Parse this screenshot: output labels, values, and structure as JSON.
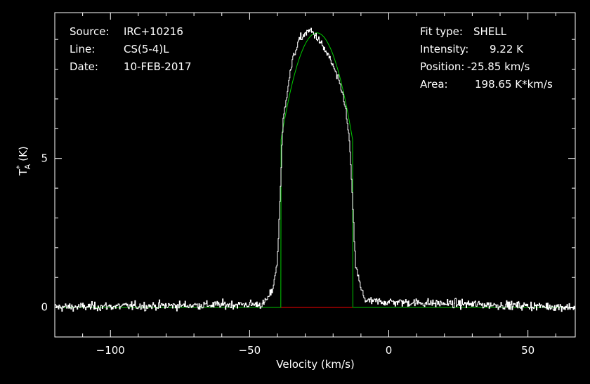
{
  "info": {
    "source_label": "Source:",
    "source_value": "IRC+10216",
    "line_label": "Line:",
    "line_value": "CS(5-4)L",
    "date_label": "Date:",
    "date_value": "10-FEB-2017",
    "fit_type_label": "Fit type:",
    "fit_type_value": "SHELL",
    "intensity_label": "Intensity:",
    "intensity_value": "9.22 K",
    "position_label": "Position:",
    "position_value": "-25.85 km/s",
    "area_label": "Area:",
    "area_value": "198.65 K*km/s"
  },
  "chart_data": {
    "type": "line",
    "xlabel": "Velocity (km/s)",
    "ylabel": "T",
    "ylabel_sup": "*",
    "ylabel_sub": "A",
    "ylabel_unit": "(K)",
    "xlim": [
      -120,
      67
    ],
    "ylim": [
      -1.0,
      9.9
    ],
    "xticks_major": [
      -100,
      -50,
      0,
      50
    ],
    "xtick_labels": [
      "−100",
      "−50",
      "0",
      "50"
    ],
    "yticks_major": [
      0,
      5
    ],
    "ytick_labels": [
      "0",
      "5"
    ],
    "grid": false,
    "colors": {
      "data": "#ffffff",
      "fit": "#00cc00",
      "window": "#cc0000",
      "frame": "#ffffff"
    },
    "fit": {
      "model": "SHELL",
      "center": -25.85,
      "half_width": 12.9,
      "peak": 9.22,
      "edge_height": 5.6
    },
    "fit_window": [
      -39,
      -13
    ],
    "series": [
      {
        "kind": "spectrum",
        "noise_rms": 0.12,
        "x": [
          -120,
          -45,
          -42,
          -40,
          -38,
          -36,
          -34,
          -32,
          -30,
          -28,
          -26,
          -24,
          -22,
          -20,
          -18,
          -16,
          -14,
          -12,
          -10,
          -8,
          67
        ],
        "y": [
          0,
          0.1,
          0.5,
          1.5,
          6.2,
          7.6,
          8.5,
          9.0,
          9.2,
          9.3,
          9.1,
          8.8,
          8.5,
          8.1,
          7.6,
          7.0,
          5.5,
          1.5,
          0.6,
          0.2,
          0
        ]
      }
    ]
  }
}
